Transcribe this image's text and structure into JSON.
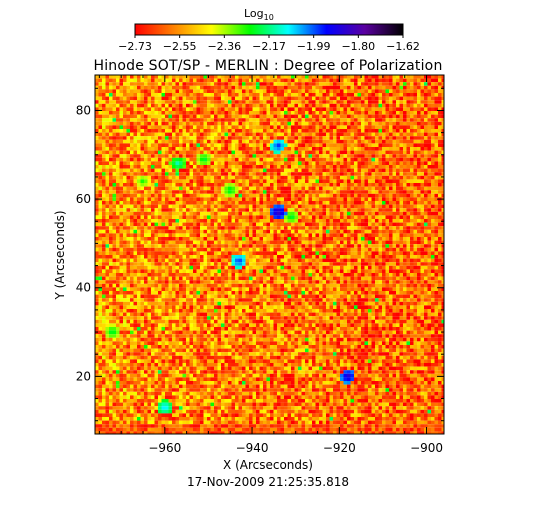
{
  "chart_data": {
    "type": "heatmap",
    "title": "Hinode SOT/SP - MERLIN : Degree of Polarization",
    "subtitle": "17-Nov-2009 21:25:35.818",
    "xlabel": "X (Arcseconds)",
    "ylabel": "Y (Arcseconds)",
    "xlim": [
      -976,
      -896
    ],
    "ylim": [
      7,
      88
    ],
    "x_ticks": [
      -960,
      -940,
      -920,
      -900
    ],
    "x_tick_labels": [
      "−960",
      "−940",
      "−920",
      "−900"
    ],
    "y_ticks": [
      20,
      40,
      60,
      80
    ],
    "y_tick_labels": [
      "20",
      "40",
      "60",
      "80"
    ],
    "colorbar": {
      "label_base": "Log",
      "label_sub": "10",
      "min": -2.73,
      "max": -1.62,
      "tick_labels": [
        "−2.73",
        "−2.55",
        "−2.36",
        "−2.17",
        "−1.99",
        "−1.80",
        "−1.62"
      ],
      "colormap": [
        "#ff0000",
        "#ff8000",
        "#ffff00",
        "#00ff00",
        "#00ffff",
        "#0000ff",
        "#5a00a0",
        "#000000"
      ]
    },
    "background_value": -2.55,
    "features": [
      {
        "x": -934,
        "y": 57,
        "value": -1.82
      },
      {
        "x": -934,
        "y": 72,
        "value": -1.95
      },
      {
        "x": -957,
        "y": 68,
        "value": -2.12
      },
      {
        "x": -951,
        "y": 69,
        "value": -2.2
      },
      {
        "x": -943,
        "y": 46,
        "value": -1.95
      },
      {
        "x": -945,
        "y": 62,
        "value": -2.2
      },
      {
        "x": -931,
        "y": 56,
        "value": -2.2
      },
      {
        "x": -918,
        "y": 20,
        "value": -1.85
      },
      {
        "x": -965,
        "y": 64,
        "value": -2.25
      },
      {
        "x": -960,
        "y": 13,
        "value": -2.05
      },
      {
        "x": -972,
        "y": 30,
        "value": -2.2
      }
    ]
  }
}
